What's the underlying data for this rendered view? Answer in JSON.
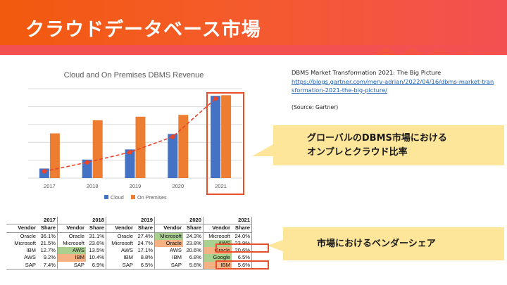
{
  "header": {
    "title": "クラウドデータベース市場"
  },
  "source": {
    "line1": "DBMS Market Transformation 2021: The Big Picture",
    "link": "https://blogs.gartner.com/merv-adrian/2022/04/16/dbms-market-transformation-2021-the-big-picture/",
    "note": "(Source: Gartner)"
  },
  "callouts": {
    "ratio_line1": "グローバルのDBMS市場における",
    "ratio_line2": "オンプレとクラウド比率",
    "share": "市場におけるベンダーシェア"
  },
  "colors": {
    "cloud": "#4472c4",
    "on_premises": "#ed7d31",
    "trend": "#e8452c",
    "highlight": "#e8502a",
    "callout": "#fde59a"
  },
  "chart_data": {
    "type": "bar",
    "title": "Cloud and On Premises DBMS Revenue",
    "categories": [
      "2017",
      "2018",
      "2019",
      "2020",
      "2021"
    ],
    "series": [
      {
        "name": "Cloud",
        "values": [
          1.6,
          3.1,
          4.8,
          7.4,
          13.8
        ]
      },
      {
        "name": "On Premises",
        "values": [
          7.5,
          9.7,
          10.3,
          10.6,
          13.9
        ]
      }
    ],
    "ylim": [
      0,
      15
    ],
    "grid": true,
    "legend": "bottom",
    "trend_series": "Cloud",
    "highlight_category": "2021"
  },
  "share_table": {
    "years": [
      "2017",
      "2018",
      "2019",
      "2020",
      "2021"
    ],
    "col_vendor": "Vendor",
    "col_share": "Share",
    "rows": [
      [
        {
          "v": "Oracle",
          "s": "36.1%"
        },
        {
          "v": "Oracle",
          "s": "31.1%"
        },
        {
          "v": "Oracle",
          "s": "27.4%"
        },
        {
          "v": "Microsoft",
          "s": "24.3%",
          "c": "g"
        },
        {
          "v": "Microsoft",
          "s": "24.0%"
        }
      ],
      [
        {
          "v": "Microsoft",
          "s": "21.5%"
        },
        {
          "v": "Microsoft",
          "s": "23.6%"
        },
        {
          "v": "Microsoft",
          "s": "24.7%"
        },
        {
          "v": "Oracle",
          "s": "23.8%",
          "c": "o"
        },
        {
          "v": "AWS",
          "s": "23.9%",
          "c": "g"
        }
      ],
      [
        {
          "v": "IBM",
          "s": "12.7%"
        },
        {
          "v": "AWS",
          "s": "13.5%",
          "c": "g"
        },
        {
          "v": "AWS",
          "s": "17.1%"
        },
        {
          "v": "AWS",
          "s": "20.6%"
        },
        {
          "v": "Oracle",
          "s": "20.6%",
          "c": "o"
        }
      ],
      [
        {
          "v": "AWS",
          "s": "9.2%"
        },
        {
          "v": "IBM",
          "s": "10.4%",
          "c": "o"
        },
        {
          "v": "IBM",
          "s": "8.8%"
        },
        {
          "v": "IBM",
          "s": "6.8%"
        },
        {
          "v": "Google",
          "s": "6.5%",
          "c": "g"
        }
      ],
      [
        {
          "v": "SAP",
          "s": "7.4%"
        },
        {
          "v": "SAP",
          "s": "6.9%"
        },
        {
          "v": "SAP",
          "s": "6.5%"
        },
        {
          "v": "SAP",
          "s": "5.6%"
        },
        {
          "v": "IBM",
          "s": "5.6%",
          "c": "o"
        }
      ]
    ]
  }
}
